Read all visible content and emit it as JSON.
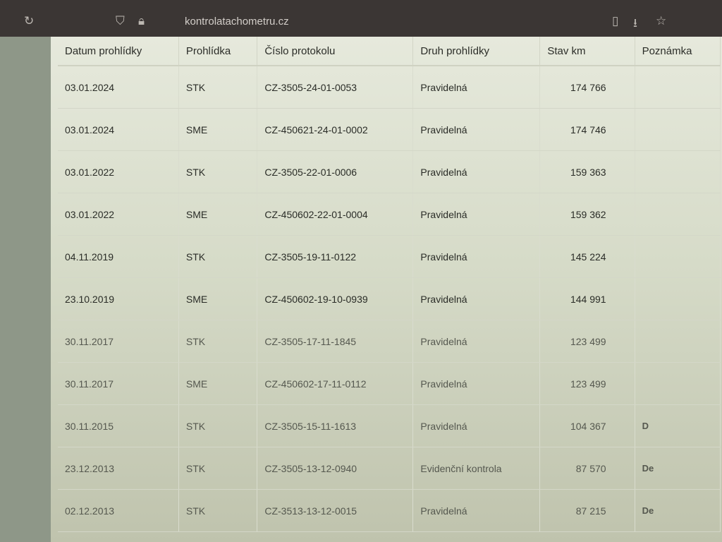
{
  "browser": {
    "url": "kontrolatachometru.cz",
    "icons": [
      "reload-icon",
      "shield-icon",
      "lock-icon",
      "reader-icon",
      "download-icon",
      "star-icon"
    ]
  },
  "table": {
    "headers": [
      "Datum prohlídky",
      "Prohlídka",
      "Číslo protokolu",
      "Druh prohlídky",
      "Stav km",
      "Poznámka"
    ],
    "rows": [
      [
        "03.01.2024",
        "STK",
        "CZ-3505-24-01-0053",
        "Pravidelná",
        "174 766",
        ""
      ],
      [
        "03.01.2024",
        "SME",
        "CZ-450621-24-01-0002",
        "Pravidelná",
        "174 746",
        ""
      ],
      [
        "03.01.2022",
        "STK",
        "CZ-3505-22-01-0006",
        "Pravidelná",
        "159 363",
        ""
      ],
      [
        "03.01.2022",
        "SME",
        "CZ-450602-22-01-0004",
        "Pravidelná",
        "159 362",
        ""
      ],
      [
        "04.11.2019",
        "STK",
        "CZ-3505-19-11-0122",
        "Pravidelná",
        "145 224",
        ""
      ],
      [
        "23.10.2019",
        "SME",
        "CZ-450602-19-10-0939",
        "Pravidelná",
        "144 991",
        ""
      ],
      [
        "30.11.2017",
        "STK",
        "CZ-3505-17-11-1845",
        "Pravidelná",
        "123 499",
        ""
      ],
      [
        "30.11.2017",
        "SME",
        "CZ-450602-17-11-0112",
        "Pravidelná",
        "123 499",
        ""
      ],
      [
        "30.11.2015",
        "STK",
        "CZ-3505-15-11-1613",
        "Pravidelná",
        "104 367",
        "D"
      ],
      [
        "23.12.2013",
        "STK",
        "CZ-3505-13-12-0940",
        "Evidenční kontrola",
        "87 570",
        "De"
      ],
      [
        "02.12.2013",
        "STK",
        "CZ-3513-13-12-0015",
        "Pravidelná",
        "87 215",
        "De"
      ]
    ]
  }
}
